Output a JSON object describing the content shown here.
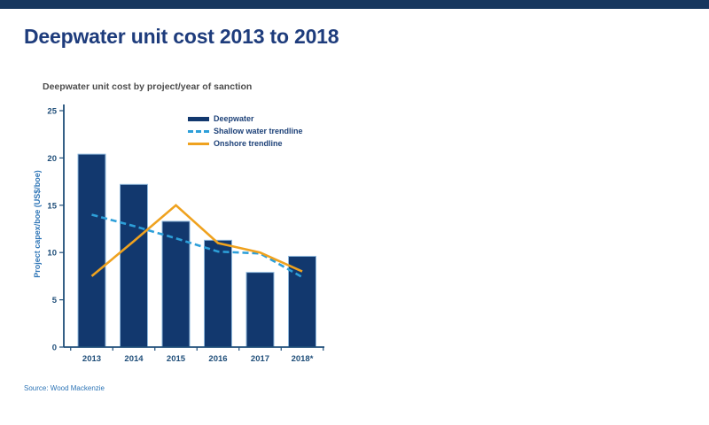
{
  "page": {
    "top_bar_color": "#17375e",
    "title": "Deepwater unit cost 2013 to 2018",
    "source": "Source: Wood Mackenzie"
  },
  "chart_data": {
    "type": "bar",
    "title": "Deepwater unit cost by project/year of sanction",
    "ylabel": "Project capex/boe (US$/boe)",
    "xlabel": "",
    "categories": [
      "2013",
      "2014",
      "2015",
      "2016",
      "2017",
      "2018*"
    ],
    "series": [
      {
        "name": "Deepwater",
        "type": "bar",
        "color": "#12386e",
        "border_color": "#8fb8dc",
        "values": [
          20.4,
          17.2,
          13.3,
          11.3,
          7.9,
          9.6
        ]
      },
      {
        "name": "Shallow water trendline",
        "type": "line",
        "style": "dashed",
        "color": "#2d9fd9",
        "values": [
          14.0,
          12.8,
          11.5,
          10.1,
          9.9,
          7.4
        ]
      },
      {
        "name": "Onshore trendline",
        "type": "line",
        "style": "solid",
        "color": "#efa21f",
        "values": [
          7.5,
          11.2,
          15.0,
          11.0,
          10.0,
          8.0
        ]
      }
    ],
    "ylim": [
      0,
      25
    ],
    "yticks": [
      0,
      5,
      10,
      15,
      20,
      25
    ],
    "grid": false,
    "legend_position": "inside-top"
  }
}
